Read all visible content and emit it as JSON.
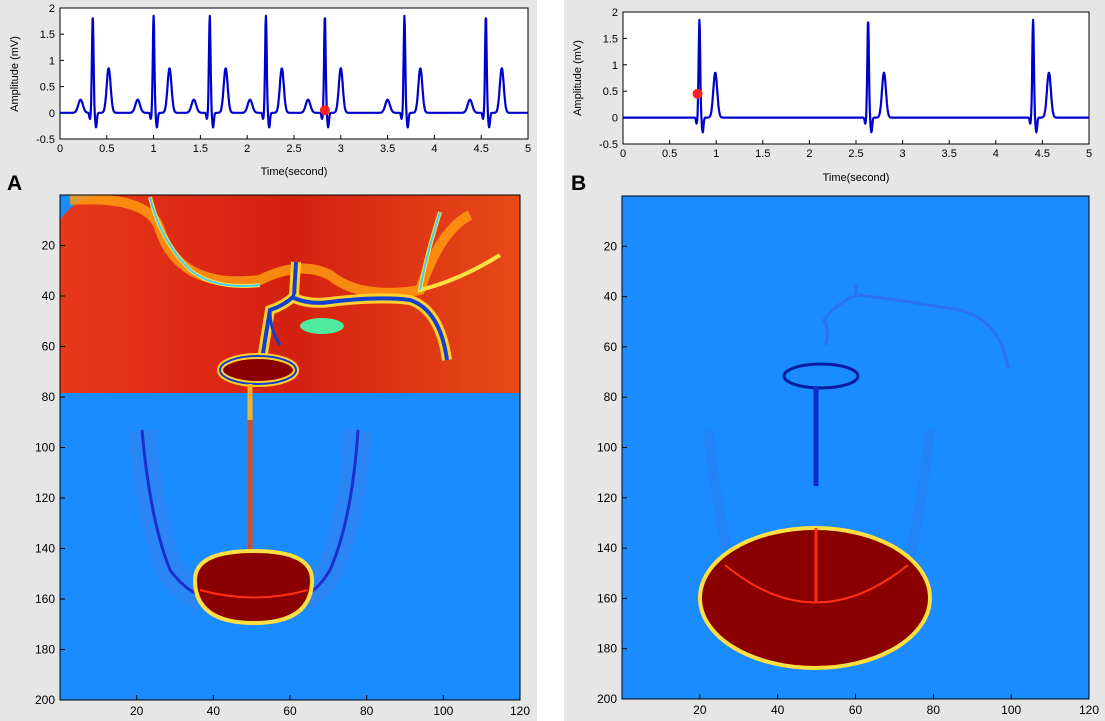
{
  "panels": [
    {
      "label": "A",
      "ecg": {
        "ylabel": "Amplitude (mV)",
        "xlabel": "Time(second)",
        "xlim": [
          0,
          5
        ],
        "ylim": [
          -0.5,
          2
        ],
        "xticks": [
          "0",
          "0.5",
          "1",
          "1.5",
          "2",
          "2.5",
          "3",
          "3.5",
          "4",
          "4.5",
          "5"
        ],
        "yticks": [
          "-0.5",
          "0",
          "0.5",
          "1",
          "1.5",
          "2"
        ],
        "marker": {
          "t": 2.83,
          "v": 0.05
        },
        "trace_color": "#0000cc",
        "marker_color": "#ff2020"
      },
      "map": {
        "xlim": [
          0,
          120
        ],
        "ylim": [
          0,
          200
        ],
        "xticks": [
          "20",
          "40",
          "60",
          "80",
          "100",
          "120"
        ],
        "yticks": [
          "20",
          "40",
          "60",
          "80",
          "100",
          "120",
          "140",
          "160",
          "180",
          "200"
        ],
        "background_color": "#1a8cff"
      }
    },
    {
      "label": "B",
      "ecg": {
        "ylabel": "Amplitude (mV)",
        "xlabel": "Time(second)",
        "xlim": [
          0,
          5
        ],
        "ylim": [
          -0.5,
          2
        ],
        "xticks": [
          "0",
          "0.5",
          "1",
          "1.5",
          "2",
          "2.5",
          "3",
          "3.5",
          "4",
          "4.5",
          "5"
        ],
        "yticks": [
          "-0.5",
          "0",
          "0.5",
          "1",
          "1.5",
          "2"
        ],
        "marker": {
          "t": 0.8,
          "v": 0.45
        },
        "trace_color": "#0000cc",
        "marker_color": "#ff2020"
      },
      "map": {
        "xlim": [
          0,
          120
        ],
        "ylim": [
          0,
          200
        ],
        "xticks": [
          "20",
          "40",
          "60",
          "80",
          "100",
          "120"
        ],
        "yticks": [
          "20",
          "40",
          "60",
          "80",
          "100",
          "120",
          "140",
          "160",
          "180",
          "200"
        ],
        "background_color": "#1a8cff"
      }
    }
  ]
}
